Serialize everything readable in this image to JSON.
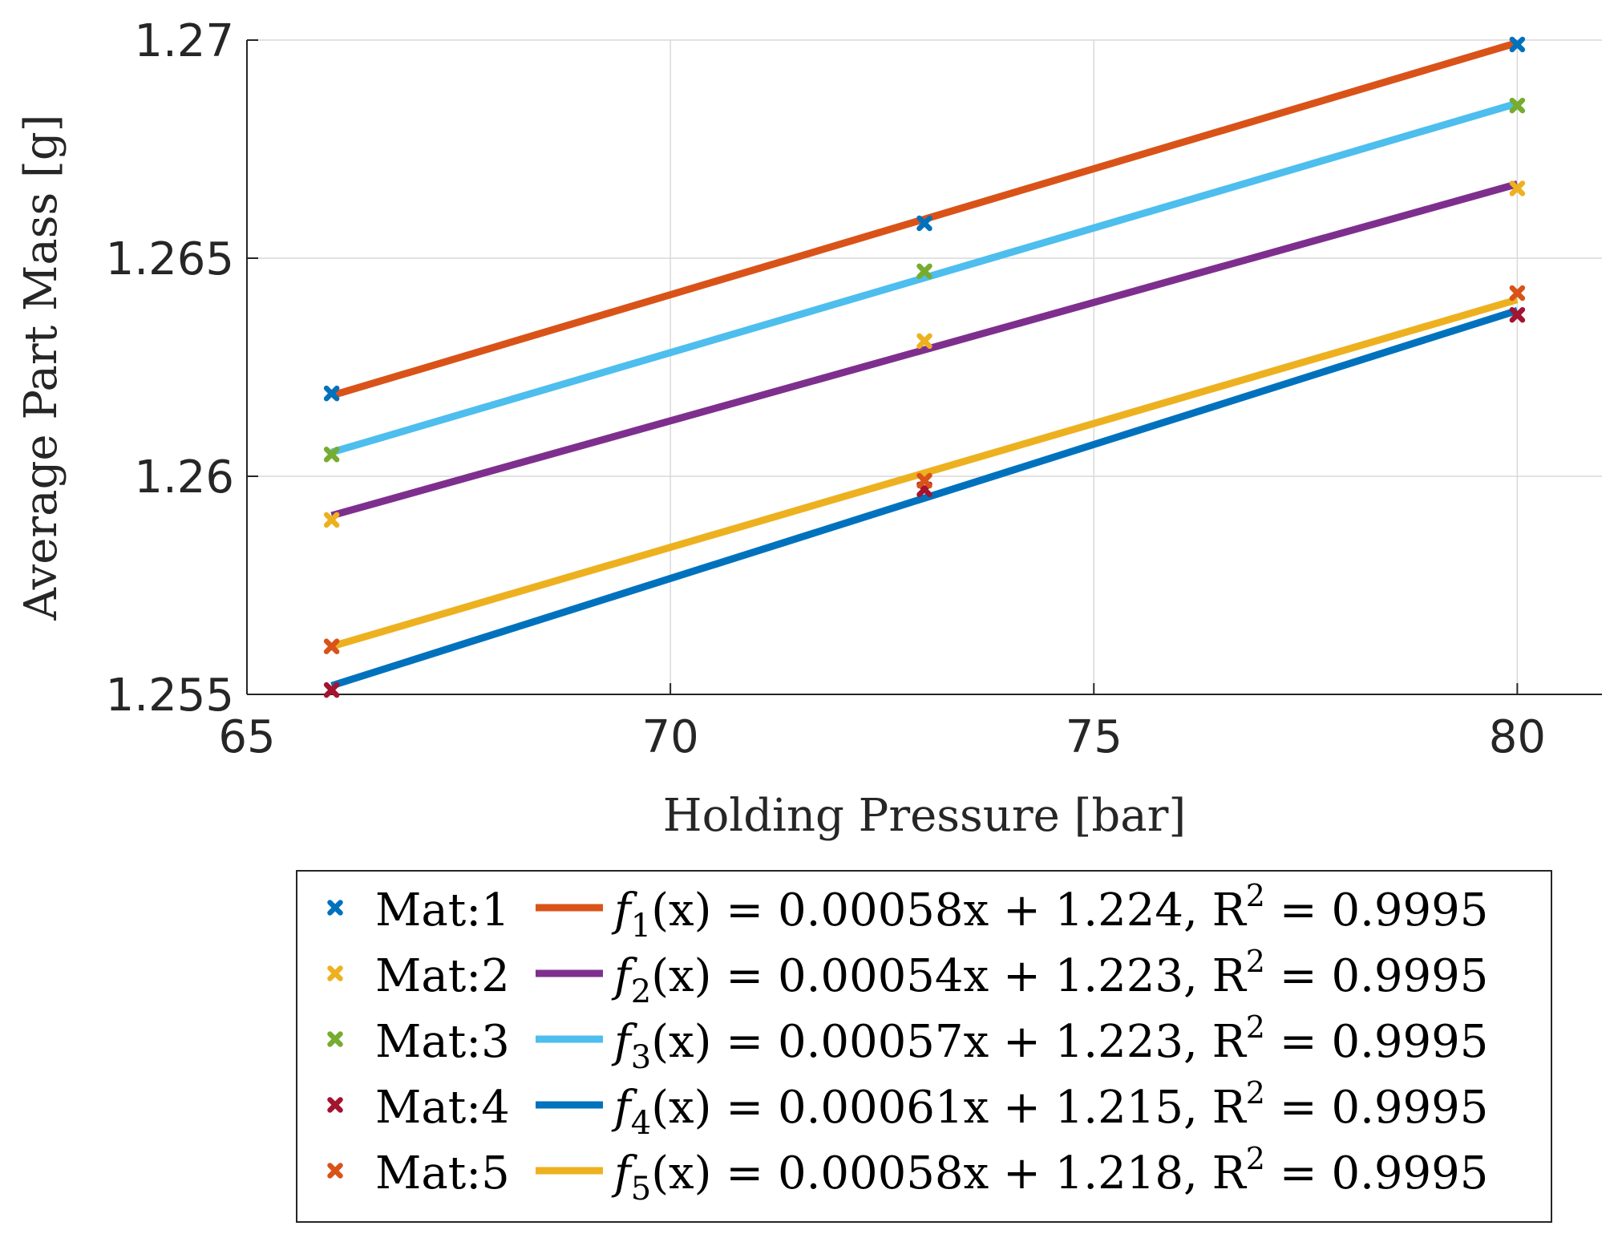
{
  "chart_data": {
    "type": "scatter",
    "title": "",
    "xlabel": "Holding Pressure [bar]",
    "ylabel": "Average Part Mass [g]",
    "xlim": [
      65,
      81
    ],
    "ylim": [
      1.255,
      1.27
    ],
    "xticks": [
      65,
      70,
      75,
      80
    ],
    "xtick_labels": [
      "65",
      "70",
      "75",
      "80"
    ],
    "yticks": [
      1.255,
      1.26,
      1.265,
      1.27
    ],
    "ytick_labels": [
      "1.255",
      "1.26",
      "1.265",
      "1.27"
    ],
    "grid": true,
    "legend_position": "bottom",
    "series": [
      {
        "name": "Mat:1",
        "marker_color": "#0072BD",
        "x": [
          66,
          73,
          80
        ],
        "y": [
          1.2619,
          1.2658,
          1.2699
        ],
        "fit": {
          "slope": 0.00058,
          "intercept": 1.224,
          "r2": 0.9995,
          "color": "#D95319",
          "label_parts": [
            "f",
            "1",
            "(x) = 0.00058x + 1.224, R",
            "2",
            " = 0.9995"
          ],
          "y_start": 1.26185,
          "y_end": 1.26994
        }
      },
      {
        "name": "Mat:2",
        "marker_color": "#EDB120",
        "x": [
          66,
          73,
          80
        ],
        "y": [
          1.259,
          1.2631,
          1.2666
        ],
        "fit": {
          "slope": 0.00054,
          "intercept": 1.223,
          "r2": 0.9995,
          "color": "#7E2F8E",
          "label_parts": [
            "f",
            "2",
            "(x) = 0.00054x + 1.223, R",
            "2",
            " = 0.9995"
          ],
          "y_start": 1.2591,
          "y_end": 1.2667
        }
      },
      {
        "name": "Mat:3",
        "marker_color": "#77AC30",
        "x": [
          66,
          73,
          80
        ],
        "y": [
          1.2605,
          1.2647,
          1.2685
        ],
        "fit": {
          "slope": 0.00057,
          "intercept": 1.223,
          "r2": 0.9995,
          "color": "#4DBEEE",
          "label_parts": [
            "f",
            "3",
            "(x) = 0.00057x + 1.223, R",
            "2",
            " = 0.9995"
          ],
          "y_start": 1.26055,
          "y_end": 1.26855
        }
      },
      {
        "name": "Mat:4",
        "marker_color": "#A2142F",
        "x": [
          66,
          73,
          80
        ],
        "y": [
          1.2551,
          1.2597,
          1.2637
        ],
        "fit": {
          "slope": 0.00061,
          "intercept": 1.215,
          "r2": 0.9995,
          "color": "#0072BD",
          "label_parts": [
            "f",
            "4",
            "(x) = 0.00061x + 1.215, R",
            "2",
            " = 0.9995"
          ],
          "y_start": 1.2552,
          "y_end": 1.2638
        }
      },
      {
        "name": "Mat:5",
        "marker_color": "#D95319",
        "x": [
          66,
          73,
          80
        ],
        "y": [
          1.2561,
          1.2599,
          1.2642
        ],
        "fit": {
          "slope": 0.00058,
          "intercept": 1.218,
          "r2": 0.9995,
          "color": "#EDB120",
          "label_parts": [
            "f",
            "5",
            "(x) = 0.00058x + 1.218, R",
            "2",
            " = 0.9995"
          ],
          "y_start": 1.2561,
          "y_end": 1.26405
        }
      }
    ]
  }
}
